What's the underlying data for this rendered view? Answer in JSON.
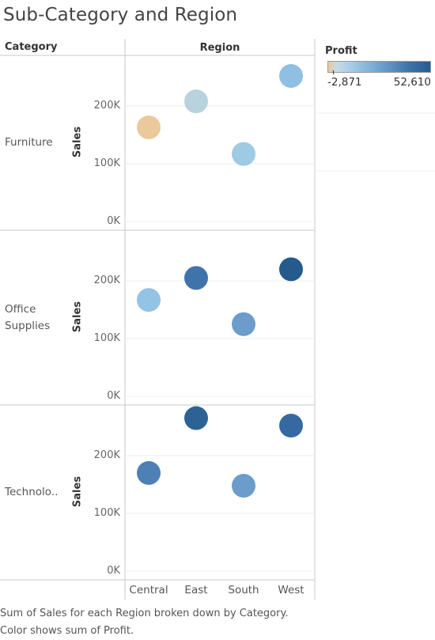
{
  "title": "Sub-Category and Region",
  "headers": {
    "category": "Category",
    "region": "Region"
  },
  "legend": {
    "title": "Profit",
    "min_label": "-2,871",
    "max_label": "52,610"
  },
  "footer": {
    "line1": "Sum of Sales for each Region broken down by Category.",
    "line2": "Color shows sum of Profit."
  },
  "chart_data": {
    "type": "scatter",
    "x": [
      "Central",
      "East",
      "South",
      "West"
    ],
    "ylabel": "Sales",
    "y_ticks": [
      "0K",
      "100K",
      "200K"
    ],
    "ylim": [
      0,
      290000
    ],
    "color_field": "Profit",
    "color_range": [
      -2871,
      52610
    ],
    "grid": true,
    "panels": [
      {
        "category": "Furniture",
        "category_lines": [
          "Furniture"
        ],
        "points": [
          {
            "region": "Central",
            "sales": 163000,
            "profit": -2871,
            "color": "#ebc99b"
          },
          {
            "region": "East",
            "sales": 208000,
            "profit": 3000,
            "color": "#b8d2de"
          },
          {
            "region": "South",
            "sales": 117000,
            "profit": 6800,
            "color": "#9ecae4"
          },
          {
            "region": "West",
            "sales": 252000,
            "profit": 11500,
            "color": "#8fc0e2"
          }
        ]
      },
      {
        "category": "Office Supplies",
        "category_lines": [
          "Office",
          "Supplies"
        ],
        "points": [
          {
            "region": "Central",
            "sales": 167000,
            "profit": 8900,
            "color": "#94c4e3"
          },
          {
            "region": "East",
            "sales": 205000,
            "profit": 41000,
            "color": "#3f74ab"
          },
          {
            "region": "South",
            "sales": 125000,
            "profit": 19900,
            "color": "#6b9ccc"
          },
          {
            "region": "West",
            "sales": 220000,
            "profit": 52610,
            "color": "#245a8c"
          }
        ]
      },
      {
        "category": "Technology",
        "category_lines": [
          "Technolo.."
        ],
        "points": [
          {
            "region": "Central",
            "sales": 170000,
            "profit": 33700,
            "color": "#4e80b5"
          },
          {
            "region": "East",
            "sales": 265000,
            "profit": 47400,
            "color": "#2d6295"
          },
          {
            "region": "South",
            "sales": 148000,
            "profit": 19900,
            "color": "#6b9ccc"
          },
          {
            "region": "West",
            "sales": 252000,
            "profit": 44300,
            "color": "#3669a0"
          }
        ]
      }
    ]
  }
}
